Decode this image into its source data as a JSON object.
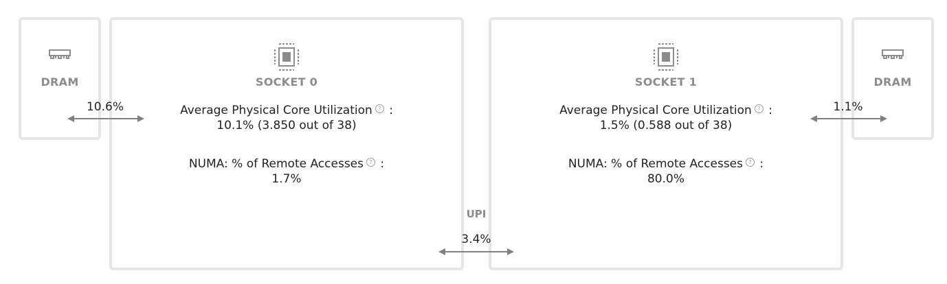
{
  "dram_left": {
    "label": "DRAM",
    "icon": "memory-module-icon"
  },
  "dram_right": {
    "label": "DRAM",
    "icon": "memory-module-icon"
  },
  "sockets": [
    {
      "label": "SOCKET 0",
      "icon": "cpu-chip-icon",
      "core_util_label": "Average Physical Core Utilization",
      "core_util_value": "10.1% (3.850 out of 38)",
      "numa_label": "NUMA: % of Remote Accesses",
      "numa_value": "1.7%"
    },
    {
      "label": "SOCKET 1",
      "icon": "cpu-chip-icon",
      "core_util_label": "Average Physical Core Utilization",
      "core_util_value": "1.5% (0.588 out of 38)",
      "numa_label": "NUMA: % of Remote Accesses",
      "numa_value": "80.0%"
    }
  ],
  "links": {
    "dram_left_socket0": "10.6%",
    "socket1_dram_right": "1.1%",
    "upi_label": "UPI",
    "upi_value": "3.4%"
  },
  "help_glyph": "?",
  "colon": ":",
  "colors": {
    "border": "#e6e6e6",
    "caption": "#8c8c8c",
    "arrow": "#808080"
  }
}
